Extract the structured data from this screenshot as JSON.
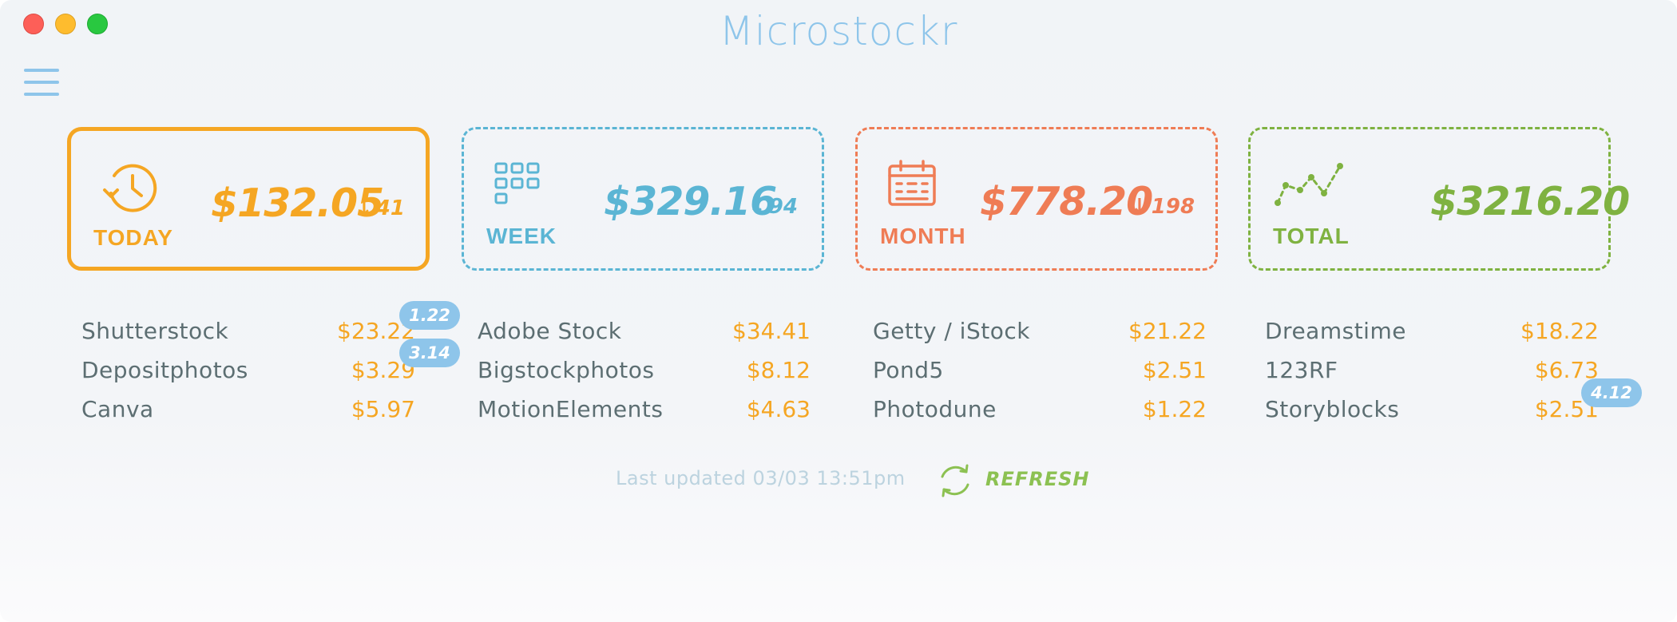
{
  "app": {
    "title": "Microstockr"
  },
  "summary": {
    "today": {
      "label": "TODAY",
      "amount": "$132.05",
      "delta": "41",
      "color": "#f5a623"
    },
    "week": {
      "label": "WEEK",
      "amount": "$329.16",
      "delta": "94",
      "color": "#5bb5d4"
    },
    "month": {
      "label": "MONTH",
      "amount": "$778.20",
      "delta": "198",
      "color": "#ef7c55"
    },
    "total": {
      "label": "TOTAL",
      "amount": "$3216.20",
      "color": "#7fb241"
    }
  },
  "agencies": {
    "col1": [
      {
        "name": "Shutterstock",
        "value": "$23.22",
        "badge": "1.22"
      },
      {
        "name": "Depositphotos",
        "value": "$3.29",
        "badge": "3.14"
      },
      {
        "name": "Canva",
        "value": "$5.97"
      }
    ],
    "col2": [
      {
        "name": "Adobe Stock",
        "value": "$34.41"
      },
      {
        "name": "Bigstockphotos",
        "value": "$8.12"
      },
      {
        "name": "MotionElements",
        "value": "$4.63"
      }
    ],
    "col3": [
      {
        "name": "Getty / iStock",
        "value": "$21.22"
      },
      {
        "name": "Pond5",
        "value": "$2.51"
      },
      {
        "name": "Photodune",
        "value": "$1.22"
      }
    ],
    "col4": [
      {
        "name": "Dreamstime",
        "value": "$18.22"
      },
      {
        "name": "123RF",
        "value": "$6.73"
      },
      {
        "name": "Storyblocks",
        "value": "$2.51",
        "badge": "4.12"
      }
    ]
  },
  "footer": {
    "last_updated": "Last updated 03/03 13:51pm",
    "refresh_label": "REFRESH"
  },
  "colors": {
    "accent_blue": "#8ec5ea",
    "value_orange": "#f5a623",
    "refresh_green": "#8cc152"
  },
  "icons": {
    "today": "clock-history-icon",
    "week": "grid-icon",
    "month": "calendar-icon",
    "total": "line-chart-icon",
    "refresh": "refresh-icon",
    "menu": "hamburger-menu-icon"
  }
}
